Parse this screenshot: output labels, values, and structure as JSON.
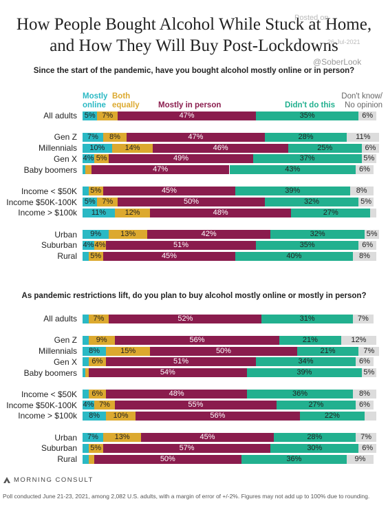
{
  "title": "How People Bought Alcohol While Stuck at Home, and How They Will Buy Post-Lockdowns",
  "watermark": [
    "Posted on",
    "26-Jul-2021",
    "@SoberLook"
  ],
  "chart_data": [
    {
      "type": "bar",
      "orientation": "horizontal",
      "stacked": true,
      "legend": true,
      "title": "Since the start of the pandemic, have you bought alcohol mostly online or in person?",
      "categories": [
        "All adults",
        "Gen Z",
        "Millennials",
        "Gen X",
        "Baby boomers",
        "Income < $50K",
        "Income $50K-100K",
        "Income > $100k",
        "Urban",
        "Suburban",
        "Rural"
      ],
      "xlim": [
        0,
        100
      ],
      "series": [
        {
          "name": "Mostly online",
          "color": "#2bb9c4",
          "values": [
            5,
            7,
            10,
            4,
            1,
            2,
            5,
            11,
            9,
            4,
            2
          ],
          "value_labels": [
            "5%",
            "7%",
            "10%",
            "4%",
            null,
            null,
            "5%",
            "11%",
            "9%",
            "4%",
            null
          ]
        },
        {
          "name": "Both equally",
          "color": "#dca92f",
          "values": [
            7,
            8,
            14,
            5,
            2,
            5,
            7,
            12,
            13,
            4,
            5
          ],
          "value_labels": [
            "7%",
            "8%",
            "14%",
            "5%",
            null,
            "5%",
            "7%",
            "12%",
            "13%",
            "4%",
            "5%"
          ]
        },
        {
          "name": "Mostly in person",
          "color": "#8a1c4d",
          "values": [
            47,
            47,
            46,
            49,
            47,
            45,
            50,
            48,
            42,
            51,
            45
          ],
          "value_labels": [
            "47%",
            "47%",
            "46%",
            "49%",
            "47%",
            "45%",
            "50%",
            "48%",
            "42%",
            "51%",
            "45%"
          ]
        },
        {
          "name": "Didn't do this",
          "color": "#22b08f",
          "values": [
            35,
            28,
            25,
            37,
            43,
            39,
            32,
            27,
            32,
            35,
            40
          ],
          "value_labels": [
            "35%",
            "28%",
            "25%",
            "37%",
            "43%",
            "39%",
            "32%",
            "27%",
            "32%",
            "35%",
            "40%"
          ]
        },
        {
          "name": "Don't know/ No opinion",
          "color": "#dcdcdc",
          "values": [
            6,
            11,
            6,
            5,
            6,
            8,
            5,
            2,
            5,
            6,
            8
          ],
          "value_labels": [
            "6%",
            "11%",
            "6%",
            "5%",
            "6%",
            "8%",
            "5%",
            null,
            "5%",
            "6%",
            "8%"
          ]
        }
      ]
    },
    {
      "type": "bar",
      "orientation": "horizontal",
      "stacked": true,
      "legend": false,
      "title": "As pandemic restrictions lift, do you plan to buy alcohol mostly online or mostly in person?",
      "categories": [
        "All adults",
        "Gen Z",
        "Millennials",
        "Gen X",
        "Baby boomers",
        "Income < $50K",
        "Income $50K-100K",
        "Income > $100k",
        "Urban",
        "Suburban",
        "Rural"
      ],
      "xlim": [
        0,
        100
      ],
      "series": [
        {
          "color": "#2bb9c4",
          "values": [
            2,
            2,
            8,
            2,
            1,
            2,
            4,
            8,
            7,
            2,
            2
          ],
          "value_labels": [
            null,
            null,
            "8%",
            null,
            null,
            null,
            "4%",
            "8%",
            "7%",
            null,
            null
          ]
        },
        {
          "color": "#dca92f",
          "values": [
            7,
            9,
            15,
            6,
            1,
            6,
            7,
            10,
            13,
            5,
            2
          ],
          "value_labels": [
            "7%",
            "9%",
            "15%",
            "6%",
            null,
            "6%",
            "7%",
            "10%",
            "13%",
            "5%",
            null
          ]
        },
        {
          "color": "#8a1c4d",
          "values": [
            52,
            56,
            50,
            51,
            54,
            48,
            55,
            56,
            45,
            57,
            50
          ],
          "value_labels": [
            "52%",
            "56%",
            "50%",
            "51%",
            "54%",
            "48%",
            "55%",
            "56%",
            "45%",
            "57%",
            "50%"
          ]
        },
        {
          "color": "#22b08f",
          "values": [
            31,
            21,
            21,
            34,
            39,
            36,
            27,
            22,
            28,
            30,
            36
          ],
          "value_labels": [
            "31%",
            "21%",
            "21%",
            "34%",
            "39%",
            "36%",
            "27%",
            "22%",
            "28%",
            "30%",
            "36%"
          ]
        },
        {
          "color": "#dcdcdc",
          "values": [
            7,
            12,
            7,
            6,
            5,
            8,
            6,
            4,
            7,
            6,
            9
          ],
          "value_labels": [
            "7%",
            "12%",
            "7%",
            "6%",
            "5%",
            "8%",
            "6%",
            null,
            "7%",
            "6%",
            "9%"
          ]
        }
      ]
    }
  ],
  "brand": "MORNING CONSULT",
  "footnote": "Poll conducted June 21-23, 2021, among 2,082 U.S. adults, with a margin of error of +/-2%. Figures may not add up to 100% due to rounding."
}
